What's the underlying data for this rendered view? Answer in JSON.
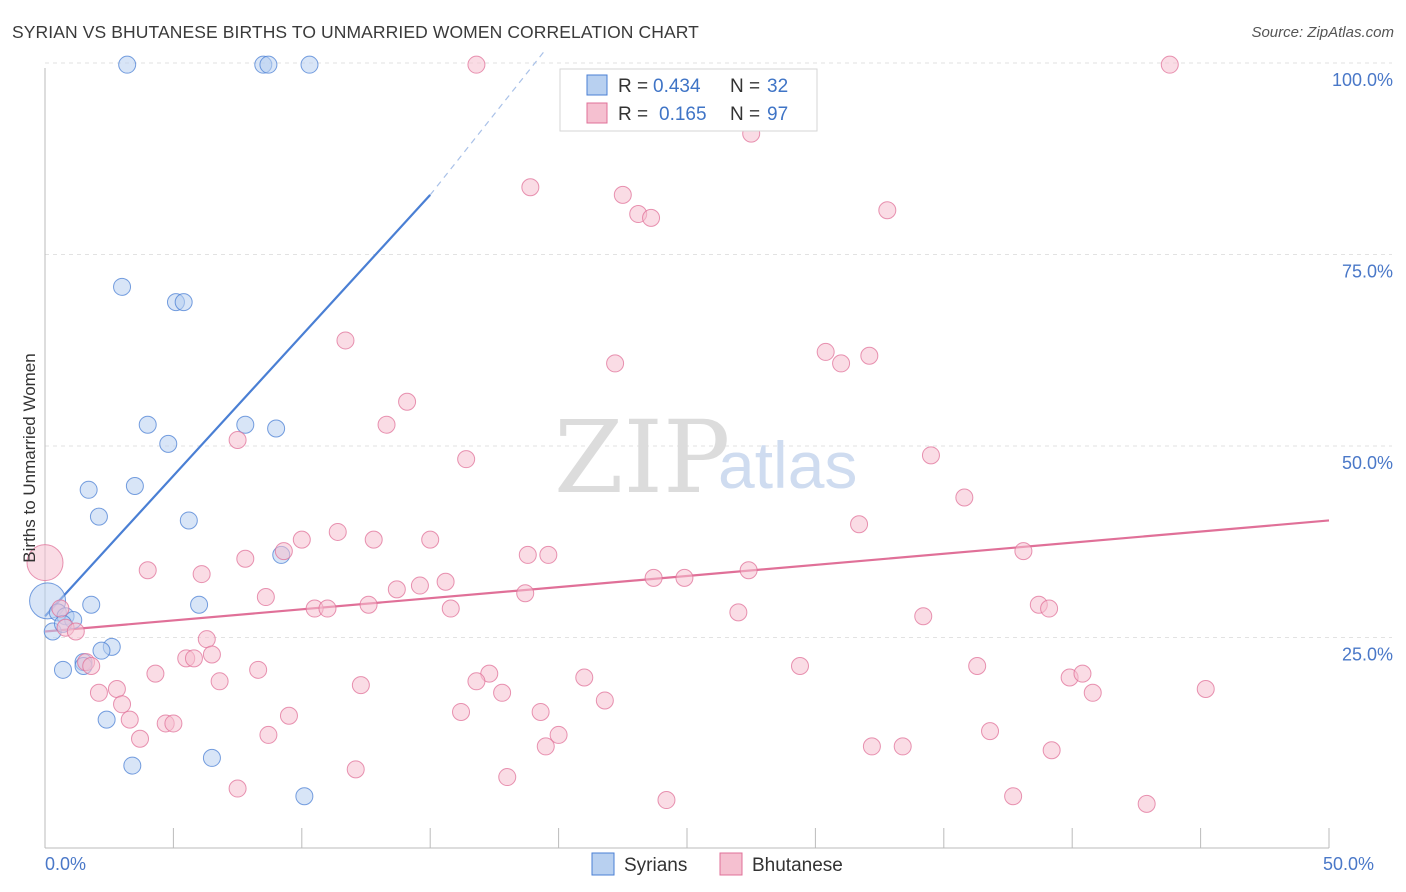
{
  "chart_data": {
    "type": "scatter",
    "title": "SYRIAN VS BHUTANESE BIRTHS TO UNMARRIED WOMEN CORRELATION CHART",
    "source": "Source: ZipAtlas.com",
    "xlabel": "",
    "ylabel": "Births to Unmarried Women",
    "xlim": [
      0,
      50
    ],
    "ylim": [
      0,
      104
    ],
    "x_tick_labels": [
      {
        "value": 0,
        "label": "0.0%"
      },
      {
        "value": 50,
        "label": "50.0%"
      }
    ],
    "y_tick_labels": [
      {
        "value": 25,
        "label": "25.0%"
      },
      {
        "value": 50,
        "label": "50.0%"
      },
      {
        "value": 75,
        "label": "75.0%"
      },
      {
        "value": 100,
        "label": "100.0%"
      }
    ],
    "watermark": {
      "zip": "ZIP",
      "atlas": "atlas"
    },
    "legend": [
      {
        "r_label": "R = ",
        "r_value": "0.434",
        "n_label": "N = ",
        "n_value": "32"
      },
      {
        "r_label": "R = ",
        "r_value": "0.165",
        "n_label": "N = ",
        "n_value": "97"
      }
    ],
    "series": [
      {
        "name": "Syrians",
        "color": "#4a7fd4",
        "fill": "#b8d0f0",
        "trend": {
          "x": [
            0,
            15
          ],
          "y": [
            30,
            85
          ],
          "dashed_to": [
            19.5,
            104
          ]
        },
        "points": [
          {
            "x": 3.2,
            "y": 102
          },
          {
            "x": 8.5,
            "y": 102
          },
          {
            "x": 8.7,
            "y": 102
          },
          {
            "x": 10.3,
            "y": 102
          },
          {
            "x": 3.0,
            "y": 73
          },
          {
            "x": 5.1,
            "y": 71
          },
          {
            "x": 5.4,
            "y": 71
          },
          {
            "x": 4.0,
            "y": 55
          },
          {
            "x": 7.8,
            "y": 55
          },
          {
            "x": 9.0,
            "y": 54.5
          },
          {
            "x": 4.8,
            "y": 52.5
          },
          {
            "x": 1.7,
            "y": 46.5
          },
          {
            "x": 3.5,
            "y": 47
          },
          {
            "x": 2.1,
            "y": 43
          },
          {
            "x": 5.6,
            "y": 42.5
          },
          {
            "x": 9.2,
            "y": 38
          },
          {
            "x": 1.8,
            "y": 31.5
          },
          {
            "x": 6.0,
            "y": 31.5
          },
          {
            "x": 0.1,
            "y": 32,
            "size": "large"
          },
          {
            "x": 0.5,
            "y": 30.5
          },
          {
            "x": 0.8,
            "y": 30
          },
          {
            "x": 1.1,
            "y": 29.5
          },
          {
            "x": 0.3,
            "y": 28
          },
          {
            "x": 0.7,
            "y": 29
          },
          {
            "x": 2.6,
            "y": 26
          },
          {
            "x": 2.2,
            "y": 25.5
          },
          {
            "x": 1.5,
            "y": 24
          },
          {
            "x": 1.5,
            "y": 23.5
          },
          {
            "x": 0.7,
            "y": 23
          },
          {
            "x": 2.4,
            "y": 16.5
          },
          {
            "x": 6.5,
            "y": 11.5
          },
          {
            "x": 3.4,
            "y": 10.5
          },
          {
            "x": 10.1,
            "y": 6.5
          }
        ]
      },
      {
        "name": "Bhutanese",
        "color": "#e07098",
        "fill": "#f5c0d0",
        "trend": {
          "x": [
            0,
            50
          ],
          "y": [
            28,
            42.5
          ]
        },
        "points": [
          {
            "x": 16.8,
            "y": 102
          },
          {
            "x": 43.8,
            "y": 102
          },
          {
            "x": 27.5,
            "y": 93
          },
          {
            "x": 18.9,
            "y": 86
          },
          {
            "x": 22.5,
            "y": 85
          },
          {
            "x": 23.1,
            "y": 82.5
          },
          {
            "x": 23.6,
            "y": 82
          },
          {
            "x": 32.8,
            "y": 83
          },
          {
            "x": 11.7,
            "y": 66
          },
          {
            "x": 30.4,
            "y": 64.5
          },
          {
            "x": 31.0,
            "y": 63
          },
          {
            "x": 32.1,
            "y": 64
          },
          {
            "x": 22.2,
            "y": 63
          },
          {
            "x": 14.1,
            "y": 58
          },
          {
            "x": 13.3,
            "y": 55
          },
          {
            "x": 7.5,
            "y": 53
          },
          {
            "x": 16.4,
            "y": 50.5
          },
          {
            "x": 34.5,
            "y": 51
          },
          {
            "x": 35.8,
            "y": 45.5
          },
          {
            "x": 31.7,
            "y": 42
          },
          {
            "x": 11.4,
            "y": 41
          },
          {
            "x": 10.0,
            "y": 40
          },
          {
            "x": 12.8,
            "y": 40
          },
          {
            "x": 15.0,
            "y": 40
          },
          {
            "x": 9.3,
            "y": 38.5
          },
          {
            "x": 18.8,
            "y": 38
          },
          {
            "x": 19.6,
            "y": 38
          },
          {
            "x": 38.1,
            "y": 38.5
          },
          {
            "x": 7.8,
            "y": 37.5
          },
          {
            "x": 4.0,
            "y": 36
          },
          {
            "x": 6.1,
            "y": 35.5
          },
          {
            "x": 27.4,
            "y": 36
          },
          {
            "x": 23.7,
            "y": 35
          },
          {
            "x": 24.9,
            "y": 35
          },
          {
            "x": 15.6,
            "y": 34.5
          },
          {
            "x": 14.6,
            "y": 34
          },
          {
            "x": 13.7,
            "y": 33.5
          },
          {
            "x": 18.7,
            "y": 33
          },
          {
            "x": 8.6,
            "y": 32.5
          },
          {
            "x": 12.6,
            "y": 31.5
          },
          {
            "x": 10.5,
            "y": 31
          },
          {
            "x": 11.0,
            "y": 31
          },
          {
            "x": 15.8,
            "y": 31
          },
          {
            "x": 27.0,
            "y": 30.5
          },
          {
            "x": 34.2,
            "y": 30
          },
          {
            "x": 38.7,
            "y": 31.5
          },
          {
            "x": 39.1,
            "y": 31
          },
          {
            "x": 0.0,
            "y": 37,
            "size": "large"
          },
          {
            "x": 0.6,
            "y": 31
          },
          {
            "x": 0.8,
            "y": 28.5
          },
          {
            "x": 1.2,
            "y": 28
          },
          {
            "x": 6.3,
            "y": 27
          },
          {
            "x": 5.5,
            "y": 24.5
          },
          {
            "x": 5.8,
            "y": 24.5
          },
          {
            "x": 6.5,
            "y": 25
          },
          {
            "x": 1.6,
            "y": 24
          },
          {
            "x": 1.8,
            "y": 23.5
          },
          {
            "x": 8.3,
            "y": 23
          },
          {
            "x": 29.4,
            "y": 23.5
          },
          {
            "x": 36.3,
            "y": 23.5
          },
          {
            "x": 4.3,
            "y": 22.5
          },
          {
            "x": 17.3,
            "y": 22.5
          },
          {
            "x": 21.0,
            "y": 22
          },
          {
            "x": 39.9,
            "y": 22
          },
          {
            "x": 40.4,
            "y": 22.5
          },
          {
            "x": 6.8,
            "y": 21.5
          },
          {
            "x": 12.3,
            "y": 21
          },
          {
            "x": 16.8,
            "y": 21.5
          },
          {
            "x": 2.1,
            "y": 20
          },
          {
            "x": 2.8,
            "y": 20.5
          },
          {
            "x": 17.8,
            "y": 20
          },
          {
            "x": 40.8,
            "y": 20
          },
          {
            "x": 45.2,
            "y": 20.5
          },
          {
            "x": 3.0,
            "y": 18.5
          },
          {
            "x": 21.8,
            "y": 19
          },
          {
            "x": 16.2,
            "y": 17.5
          },
          {
            "x": 19.3,
            "y": 17.5
          },
          {
            "x": 9.5,
            "y": 17
          },
          {
            "x": 3.3,
            "y": 16.5
          },
          {
            "x": 4.7,
            "y": 16
          },
          {
            "x": 5.0,
            "y": 16
          },
          {
            "x": 8.7,
            "y": 14.5
          },
          {
            "x": 20.0,
            "y": 14.5
          },
          {
            "x": 36.8,
            "y": 15
          },
          {
            "x": 3.7,
            "y": 14
          },
          {
            "x": 19.5,
            "y": 13
          },
          {
            "x": 32.2,
            "y": 13
          },
          {
            "x": 33.4,
            "y": 13
          },
          {
            "x": 39.2,
            "y": 12.5
          },
          {
            "x": 12.1,
            "y": 10
          },
          {
            "x": 18.0,
            "y": 9
          },
          {
            "x": 7.5,
            "y": 7.5
          },
          {
            "x": 24.2,
            "y": 6
          },
          {
            "x": 37.7,
            "y": 6.5
          },
          {
            "x": 42.9,
            "y": 5.5
          }
        ]
      }
    ]
  }
}
